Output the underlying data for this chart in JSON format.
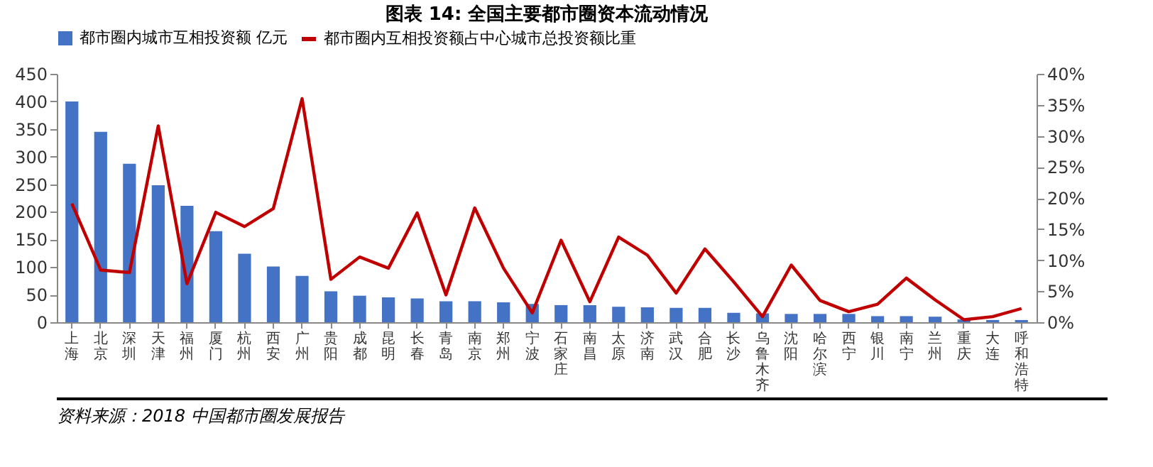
{
  "chart_data": {
    "type": "bar",
    "title": "图表 14:    全国主要都市圈资本流动情况",
    "categories": [
      "上海",
      "北京",
      "深圳",
      "天津",
      "福州",
      "厦门",
      "杭州",
      "西安",
      "广州",
      "贵阳",
      "成都",
      "昆明",
      "长春",
      "青岛",
      "南京",
      "郑州",
      "宁波",
      "石家庄",
      "南昌",
      "太原",
      "济南",
      "武汉",
      "合肥",
      "长沙",
      "乌鲁木齐",
      "沈阳",
      "哈尔滨",
      "西宁",
      "银川",
      "南宁",
      "兰州",
      "重庆",
      "大连",
      "呼和浩特"
    ],
    "series": [
      {
        "name": "都市圈内城市互相投资额 亿元",
        "color": "#4472c4",
        "values": [
          400,
          345,
          287,
          248,
          211,
          165,
          124,
          101,
          84,
          56,
          48,
          45,
          43,
          38,
          38,
          36,
          33,
          31,
          31,
          28,
          27,
          26,
          26,
          17,
          16,
          15,
          15,
          15,
          11,
          11,
          10,
          5,
          4,
          4
        ]
      },
      {
        "name": "都市圈内互相投资额占中心城市总投资额比重",
        "type": "line",
        "axis": "y2",
        "color": "#c00000",
        "values": [
          19.1,
          8.4,
          8.0,
          31.6,
          6.2,
          17.7,
          15.4,
          18.3,
          36.0,
          6.9,
          10.5,
          8.7,
          17.6,
          4.4,
          18.4,
          8.7,
          1.5,
          13.2,
          3.3,
          13.7,
          10.8,
          4.7,
          11.8,
          6.5,
          0.9,
          9.2,
          3.5,
          1.7,
          2.9,
          7.1,
          3.6,
          0.4,
          0.9,
          2.2
        ]
      }
    ],
    "ylim": [
      0,
      450
    ],
    "yticks": [
      0,
      50,
      100,
      150,
      200,
      250,
      300,
      350,
      400,
      450
    ],
    "y2lim": [
      0,
      40
    ],
    "y2ticks": [
      {
        "value": 0,
        "label": "0%"
      },
      {
        "value": 5,
        "label": "5%"
      },
      {
        "value": 10,
        "label": "10%"
      },
      {
        "value": 15,
        "label": "15%"
      },
      {
        "value": 20,
        "label": "20%"
      },
      {
        "value": 25,
        "label": "25%"
      },
      {
        "value": 30,
        "label": "30%"
      },
      {
        "value": 35,
        "label": "35%"
      },
      {
        "value": 40,
        "label": "40%"
      }
    ],
    "legend": "top",
    "annotations": [
      "资料来源：2018 中国都市圈发展报告"
    ]
  }
}
